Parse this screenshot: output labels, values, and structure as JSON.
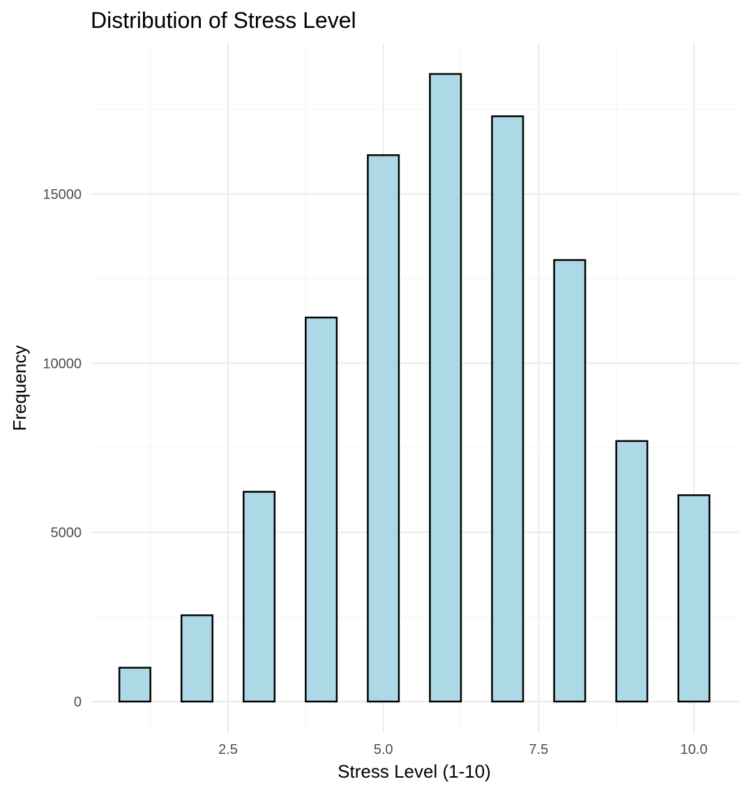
{
  "chart_data": {
    "type": "bar",
    "title": "Distribution of Stress Level",
    "xlabel": "Stress Level (1-10)",
    "ylabel": "Frequency",
    "x": [
      1,
      2,
      3,
      4,
      5,
      6,
      7,
      8,
      9,
      10
    ],
    "values": [
      1000,
      2550,
      6200,
      11350,
      16150,
      18550,
      17300,
      13050,
      7700,
      6100
    ],
    "xlim": [
      0.5,
      10.5
    ],
    "ylim": [
      0,
      19400
    ],
    "x_ticks": [
      2.5,
      5.0,
      7.5,
      10.0
    ],
    "x_tick_labels": [
      "2.5",
      "5.0",
      "7.5",
      "10.0"
    ],
    "y_ticks": [
      0,
      5000,
      10000,
      15000
    ],
    "y_tick_labels": [
      "0",
      "5000",
      "10000",
      "15000"
    ],
    "bar_fill": "#add8e6",
    "bar_outline": "#000000",
    "grid": true,
    "legend": "none"
  }
}
